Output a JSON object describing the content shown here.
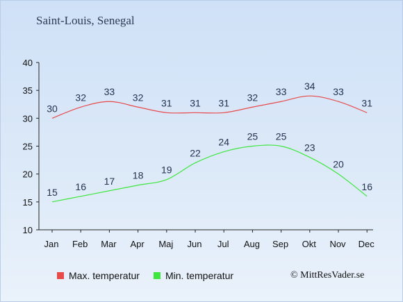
{
  "title": "Saint-Louis, Senegal",
  "credit": "© MittResVader.se",
  "chart_data": {
    "type": "line",
    "categories": [
      "Jan",
      "Feb",
      "Mar",
      "Apr",
      "Maj",
      "Jun",
      "Jul",
      "Aug",
      "Sep",
      "Okt",
      "Nov",
      "Dec"
    ],
    "ylim": [
      10,
      40
    ],
    "yticks": [
      10,
      15,
      20,
      25,
      30,
      35,
      40
    ],
    "grid": false,
    "legend_position": "bottom",
    "series": [
      {
        "name": "Max. temperatur",
        "color": "#e84a4a",
        "values": [
          30,
          32,
          33,
          32,
          31,
          31,
          31,
          32,
          33,
          34,
          33,
          31
        ]
      },
      {
        "name": "Min. temperatur",
        "color": "#3ee63e",
        "values": [
          15,
          16,
          17,
          18,
          19,
          22,
          24,
          25,
          25,
          23,
          20,
          16
        ]
      }
    ]
  }
}
